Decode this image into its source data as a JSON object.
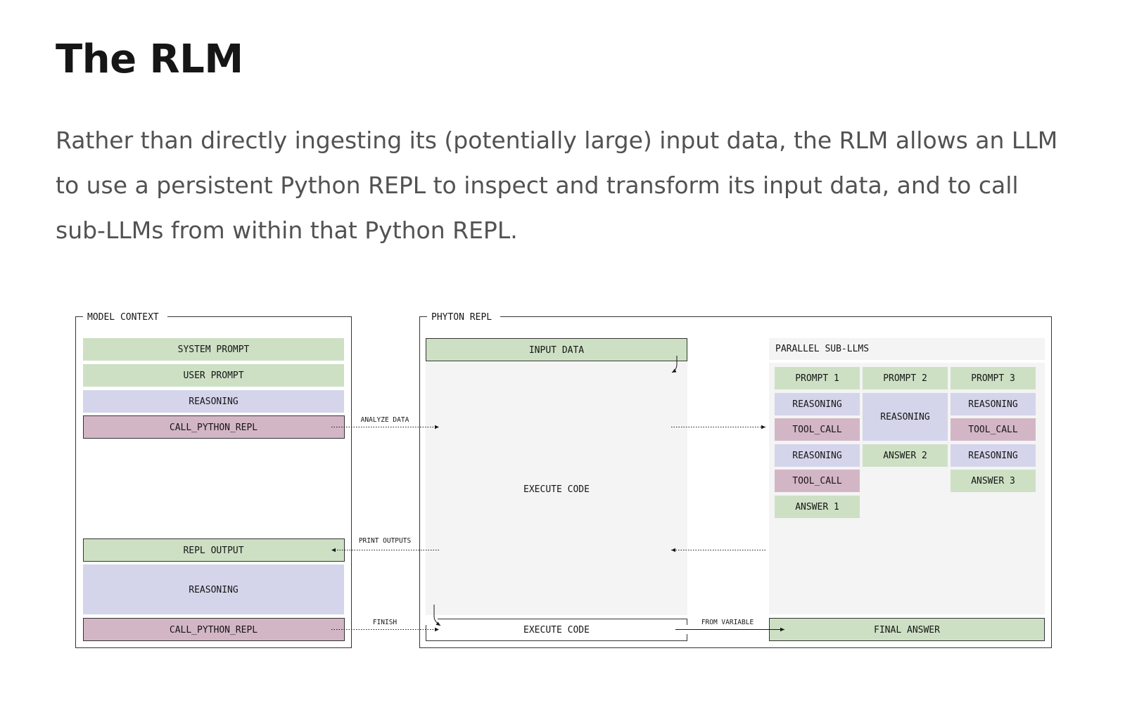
{
  "header": {
    "title": "The RLM",
    "description": "Rather than directly ingesting its (potentially large) input data, the RLM allows an LLM to use a persistent Python REPL to inspect and transform its input data, and to call sub-LLMs from within that Python REPL."
  },
  "colors": {
    "green": "#cde0c4",
    "purple": "#d4d5ea",
    "pink": "#d3b6c6",
    "panel_gray": "#f4f4f4",
    "border": "#333333"
  },
  "model_context": {
    "label": "MODEL CONTEXT",
    "system_prompt": "SYSTEM PROMPT",
    "user_prompt": "USER PROMPT",
    "reasoning_1": "REASONING",
    "call_repl_1": "CALL_PYTHON_REPL",
    "repl_output": "REPL OUTPUT",
    "reasoning_2": "REASONING",
    "call_repl_2": "CALL_PYTHON_REPL"
  },
  "python_repl": {
    "label": "PHYTON REPL",
    "input_data": "INPUT DATA",
    "execute_code": "EXECUTE CODE",
    "execute_code_final": "EXECUTE CODE"
  },
  "sub_llms": {
    "label": "PARALLEL SUB-LLMS",
    "col1": [
      "PROMPT 1",
      "REASONING",
      "TOOL_CALL",
      "REASONING",
      "TOOL_CALL",
      "ANSWER 1"
    ],
    "col2": [
      "PROMPT 2",
      "REASONING",
      "ANSWER 2"
    ],
    "col3": [
      "PROMPT 3",
      "REASONING",
      "TOOL_CALL",
      "REASONING",
      "ANSWER 3"
    ],
    "final_answer": "FINAL ANSWER"
  },
  "arrows": {
    "analyze_data": "ANALYZE DATA",
    "print_outputs": "PRINT OUTPUTS",
    "finish": "FINISH",
    "from_variable": "FROM VARIABLE"
  }
}
